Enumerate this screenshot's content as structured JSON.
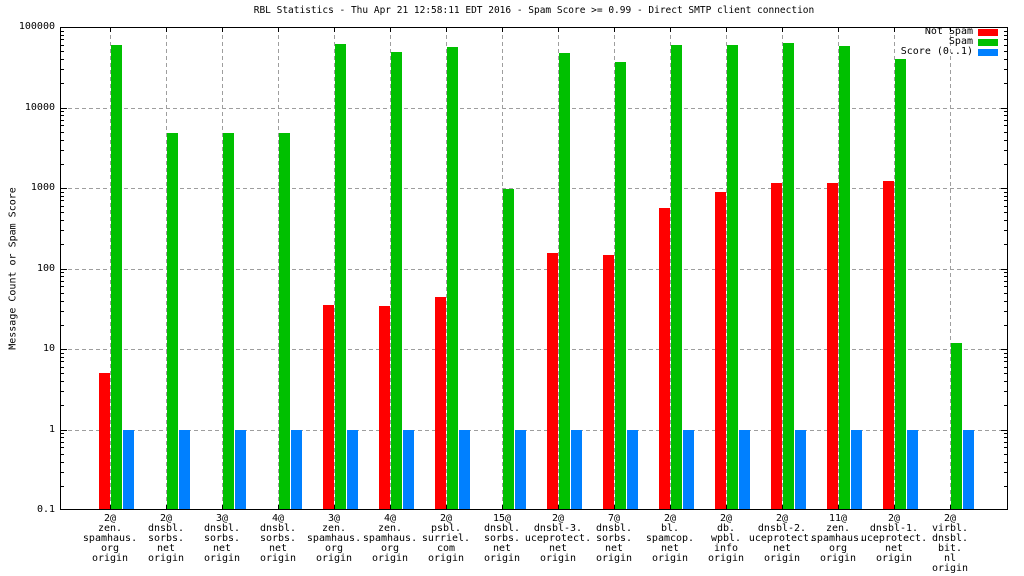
{
  "chart_data": {
    "type": "bar",
    "title": "RBL Statistics - Thu Apr 21 12:58:11 EDT 2016 - Spam Score >= 0.99 - Direct SMTP client connection",
    "ylabel": "Message Count or Spam Score",
    "xlabel": "",
    "yscale": "log",
    "ylim": [
      0.1,
      100000
    ],
    "ytick_values": [
      100000,
      10000,
      1000,
      100,
      10,
      1,
      0.1
    ],
    "ytick_labels": [
      "100000",
      "10000",
      "1000",
      "100",
      "10",
      "1",
      "0.1"
    ],
    "grid": true,
    "legend_position": "top-right-inside",
    "categories": [
      [
        "2@",
        "zen.",
        "spamhaus.",
        "org",
        "origin"
      ],
      [
        "2@",
        "dnsbl.",
        "sorbs.",
        "net",
        "origin"
      ],
      [
        "3@",
        "dnsbl.",
        "sorbs.",
        "net",
        "origin"
      ],
      [
        "4@",
        "dnsbl.",
        "sorbs.",
        "net",
        "origin"
      ],
      [
        "3@",
        "zen.",
        "spamhaus.",
        "org",
        "origin"
      ],
      [
        "4@",
        "zen.",
        "spamhaus.",
        "org",
        "origin"
      ],
      [
        "2@",
        "psbl.",
        "surriel.",
        "com",
        "origin"
      ],
      [
        "15@",
        "dnsbl.",
        "sorbs.",
        "net",
        "origin"
      ],
      [
        "2@",
        "dnsbl-3.",
        "uceprotect.",
        "net",
        "origin"
      ],
      [
        "7@",
        "dnsbl.",
        "sorbs.",
        "net",
        "origin"
      ],
      [
        "2@",
        "bl.",
        "spamcop.",
        "net",
        "origin"
      ],
      [
        "2@",
        "db.",
        "wpbl.",
        "info",
        "origin"
      ],
      [
        "2@",
        "dnsbl-2.",
        "uceprotect.",
        "net",
        "origin"
      ],
      [
        "11@",
        "zen.",
        "spamhaus.",
        "org",
        "origin"
      ],
      [
        "2@",
        "dnsbl-1.",
        "uceprotect.",
        "net",
        "origin"
      ],
      [
        "2@",
        "virbl.",
        "dnsbl.",
        "bit.",
        "nl",
        "origin"
      ]
    ],
    "series": [
      {
        "name": "Not Spam",
        "color": "#ff0000",
        "values": [
          5,
          0,
          0,
          0,
          35,
          34,
          44,
          0,
          158,
          149,
          560,
          880,
          1150,
          1140,
          1230,
          0
        ]
      },
      {
        "name": "Spam",
        "color": "#00c000",
        "values": [
          59000,
          4800,
          4800,
          4800,
          61000,
          49000,
          56000,
          980,
          48000,
          37000,
          60000,
          60000,
          63000,
          58000,
          40000,
          12
        ]
      },
      {
        "name": "Score (0..1)",
        "color": "#0080ff",
        "values": [
          1,
          1,
          1,
          1,
          1,
          1,
          1,
          1,
          1,
          1,
          1,
          1,
          1,
          1,
          1,
          1
        ]
      }
    ],
    "colors": {
      "grid": "#9e9e9e",
      "border": "#000000",
      "background": "#ffffff"
    }
  }
}
